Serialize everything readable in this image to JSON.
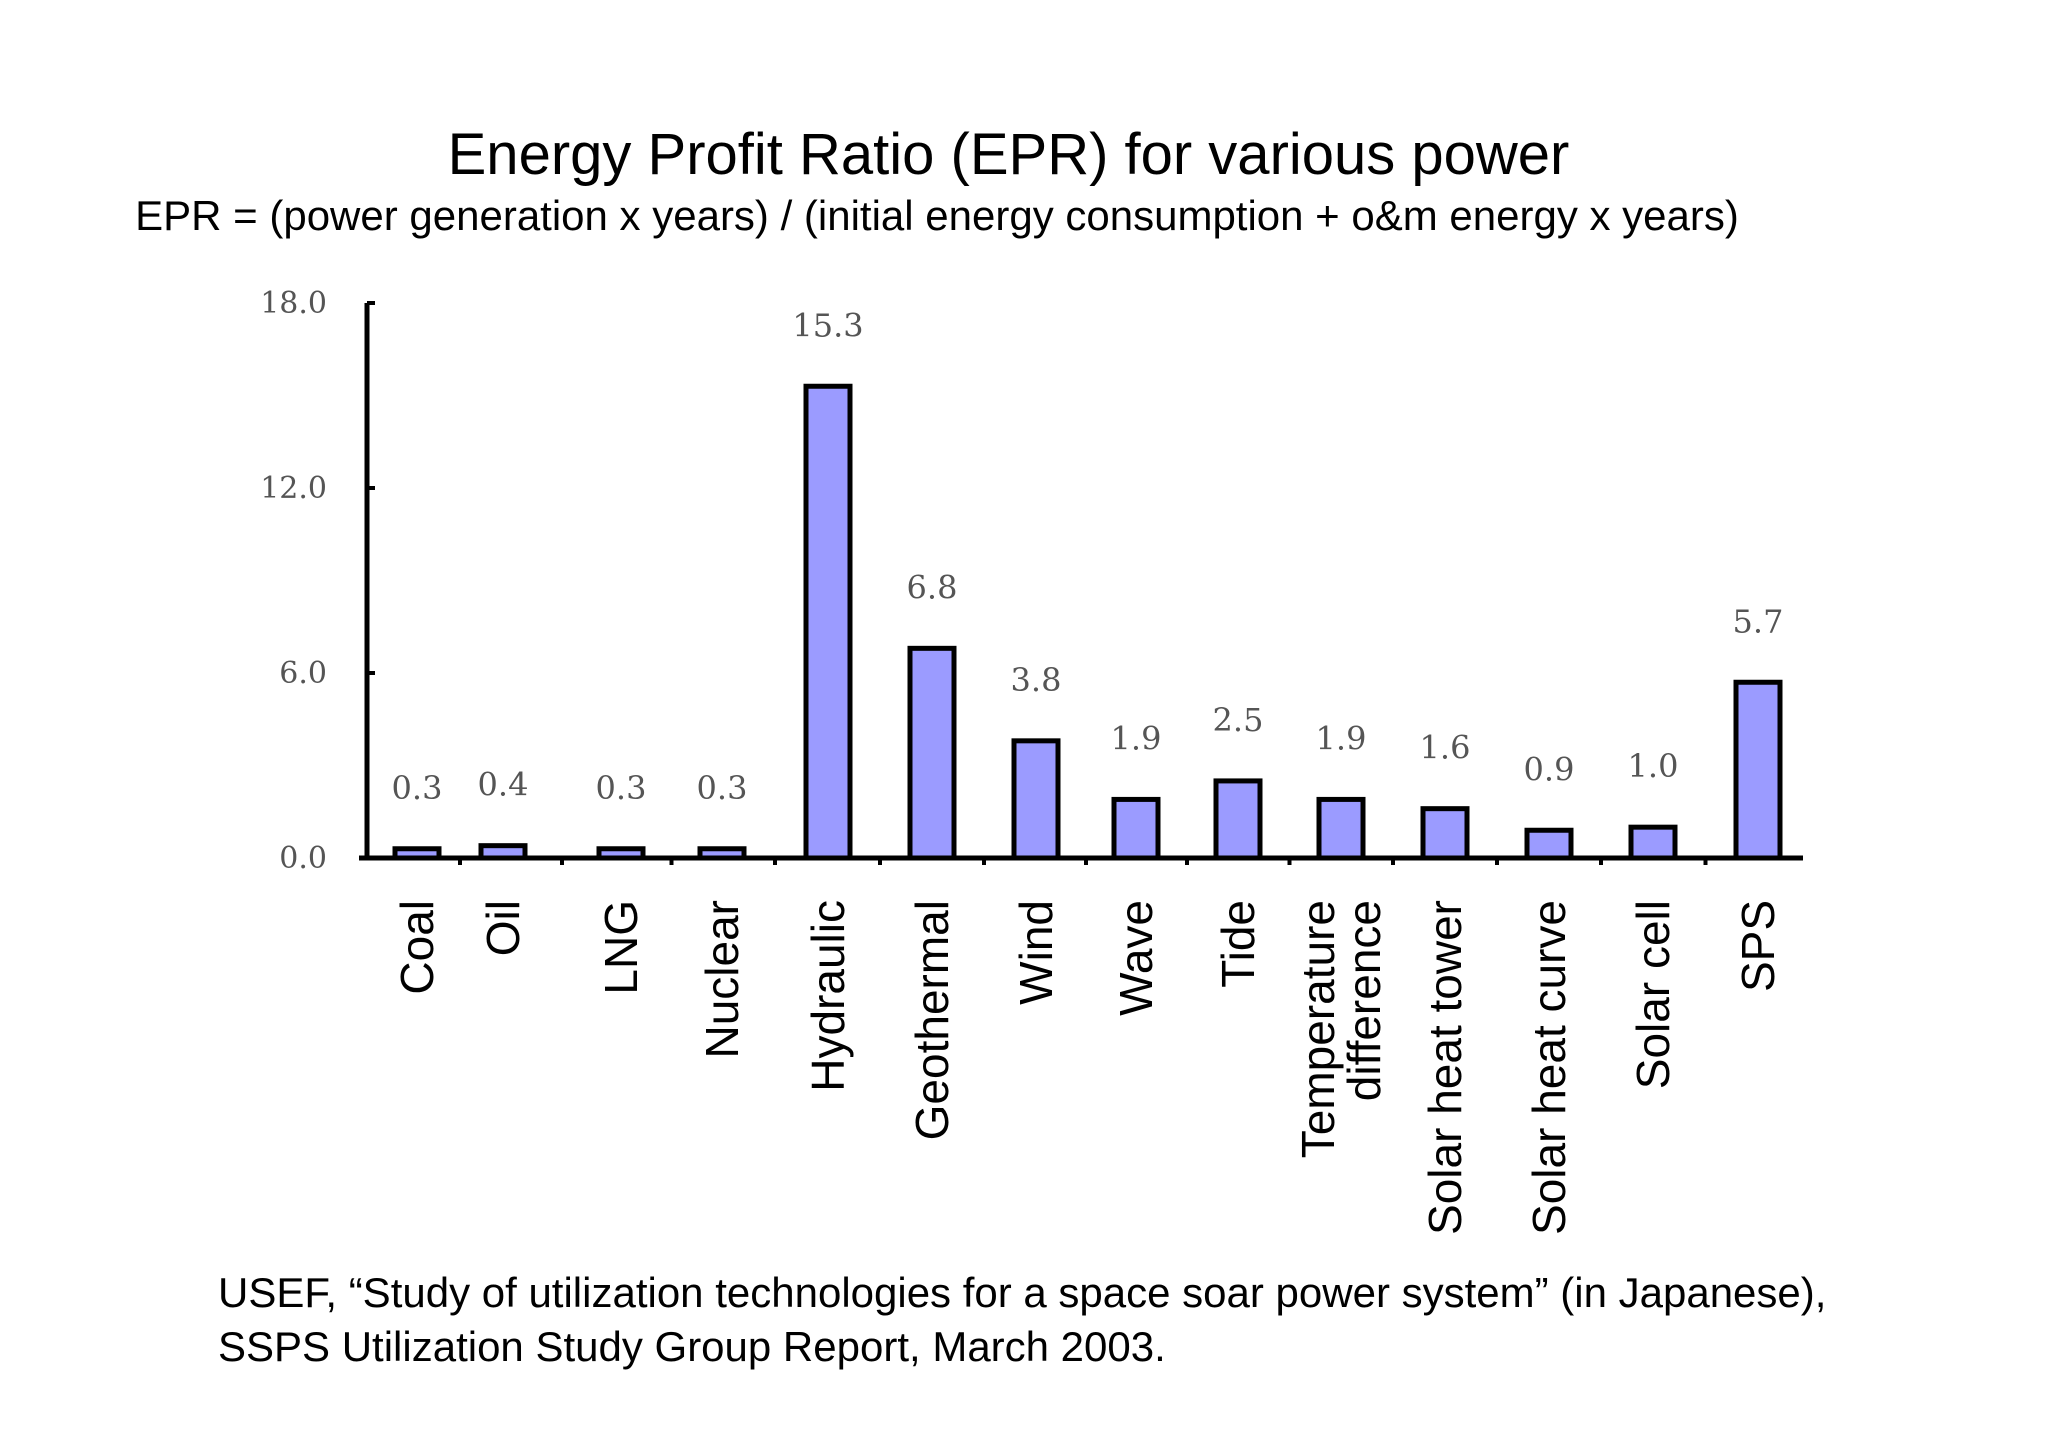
{
  "title": "Energy Profit Ratio (EPR) for various power",
  "subtitle": "EPR = (power generation x years) / (initial energy consumption + o&m energy x years)",
  "source": {
    "line1": "USEF, “Study of utilization technologies for a space soar power system” (in Japanese),",
    "line2": "SSPS Utilization Study Group Report, March 2003."
  },
  "colors": {
    "bar": "#9b9bff",
    "bar_outline": "#000000"
  },
  "chart_data": {
    "type": "bar",
    "title": "Energy Profit Ratio (EPR) for various power",
    "xlabel": "",
    "ylabel": "",
    "ylim": [
      0,
      18
    ],
    "yticks": [
      "0.0",
      "6.0",
      "12.0",
      "18.0"
    ],
    "categories": [
      [
        "Coal"
      ],
      [
        "Oil"
      ],
      [
        "LNG"
      ],
      [
        "Nuclear"
      ],
      [
        "Hydraulic"
      ],
      [
        "Geothermal"
      ],
      [
        "Wind"
      ],
      [
        "Wave"
      ],
      [
        "Tide"
      ],
      [
        "Temperature",
        "difference"
      ],
      [
        "Solar heat tower"
      ],
      [
        "Solar heat curve"
      ],
      [
        "Solar cell"
      ],
      [
        "SPS"
      ]
    ],
    "values": [
      0.3,
      0.4,
      0.3,
      0.3,
      15.3,
      6.8,
      3.8,
      1.9,
      2.5,
      1.9,
      1.6,
      0.9,
      1.0,
      5.7
    ],
    "value_labels": [
      "0.3",
      "0.4",
      "0.3",
      "0.3",
      "15.3",
      "6.8",
      "3.8",
      "1.9",
      "2.5",
      "1.9",
      "1.6",
      "0.9",
      "1.0",
      "5.7"
    ],
    "grid": false,
    "legend": "none"
  }
}
